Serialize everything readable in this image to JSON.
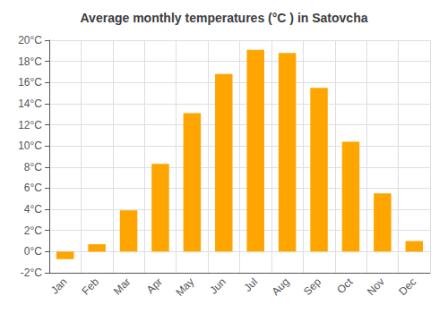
{
  "chart_data": {
    "type": "bar",
    "title": "Average monthly temperatures (°C ) in Satovcha",
    "categories": [
      "Jan",
      "Feb",
      "Mar",
      "Apr",
      "May",
      "Jun",
      "Jul",
      "Aug",
      "Sep",
      "Oct",
      "Nov",
      "Dec"
    ],
    "values": [
      -0.7,
      0.7,
      3.9,
      8.3,
      13.1,
      16.8,
      19.1,
      18.8,
      15.5,
      10.4,
      5.5,
      1.0
    ],
    "color": "#FFA500",
    "ylim": [
      -2,
      20
    ],
    "yticks": [
      {
        "value": -2,
        "label": "-2°C"
      },
      {
        "value": 0,
        "label": "0°C"
      },
      {
        "value": 2,
        "label": "2°C"
      },
      {
        "value": 4,
        "label": "4°C"
      },
      {
        "value": 6,
        "label": "6°C"
      },
      {
        "value": 8,
        "label": "8°C"
      },
      {
        "value": 10,
        "label": "10°C"
      },
      {
        "value": 12,
        "label": "12°C"
      },
      {
        "value": 14,
        "label": "14°C"
      },
      {
        "value": 16,
        "label": "16°C"
      },
      {
        "value": 18,
        "label": "18°C"
      },
      {
        "value": 20,
        "label": "20°C"
      }
    ],
    "grid": true
  }
}
